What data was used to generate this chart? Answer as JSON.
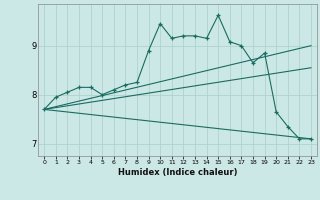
{
  "title": "",
  "xlabel": "Humidex (Indice chaleur)",
  "background_color": "#cce8e6",
  "grid_color": "#aacfcc",
  "line_color": "#1a6b60",
  "xlim": [
    -0.5,
    23.5
  ],
  "ylim": [
    6.75,
    9.85
  ],
  "yticks": [
    7,
    8,
    9
  ],
  "xticks": [
    0,
    1,
    2,
    3,
    4,
    5,
    6,
    7,
    8,
    9,
    10,
    11,
    12,
    13,
    14,
    15,
    16,
    17,
    18,
    19,
    20,
    21,
    22,
    23
  ],
  "series": [
    {
      "x": [
        0,
        1,
        2,
        3,
        4,
        5,
        6,
        7,
        8,
        9,
        10,
        11,
        12,
        13,
        14,
        15,
        16,
        17,
        18,
        19,
        20,
        21,
        22,
        23
      ],
      "y": [
        7.7,
        7.95,
        8.05,
        8.15,
        8.15,
        8.0,
        8.1,
        8.2,
        8.25,
        8.9,
        9.45,
        9.15,
        9.2,
        9.2,
        9.15,
        9.62,
        9.08,
        9.0,
        8.65,
        8.85,
        7.65,
        7.35,
        7.1,
        7.1
      ],
      "marker": true
    },
    {
      "x": [
        0,
        23
      ],
      "y": [
        7.7,
        9.0
      ],
      "marker": false
    },
    {
      "x": [
        0,
        23
      ],
      "y": [
        7.7,
        8.55
      ],
      "marker": false
    },
    {
      "x": [
        0,
        23
      ],
      "y": [
        7.7,
        7.1
      ],
      "marker": false
    }
  ],
  "figsize": [
    3.2,
    2.0
  ],
  "dpi": 100
}
